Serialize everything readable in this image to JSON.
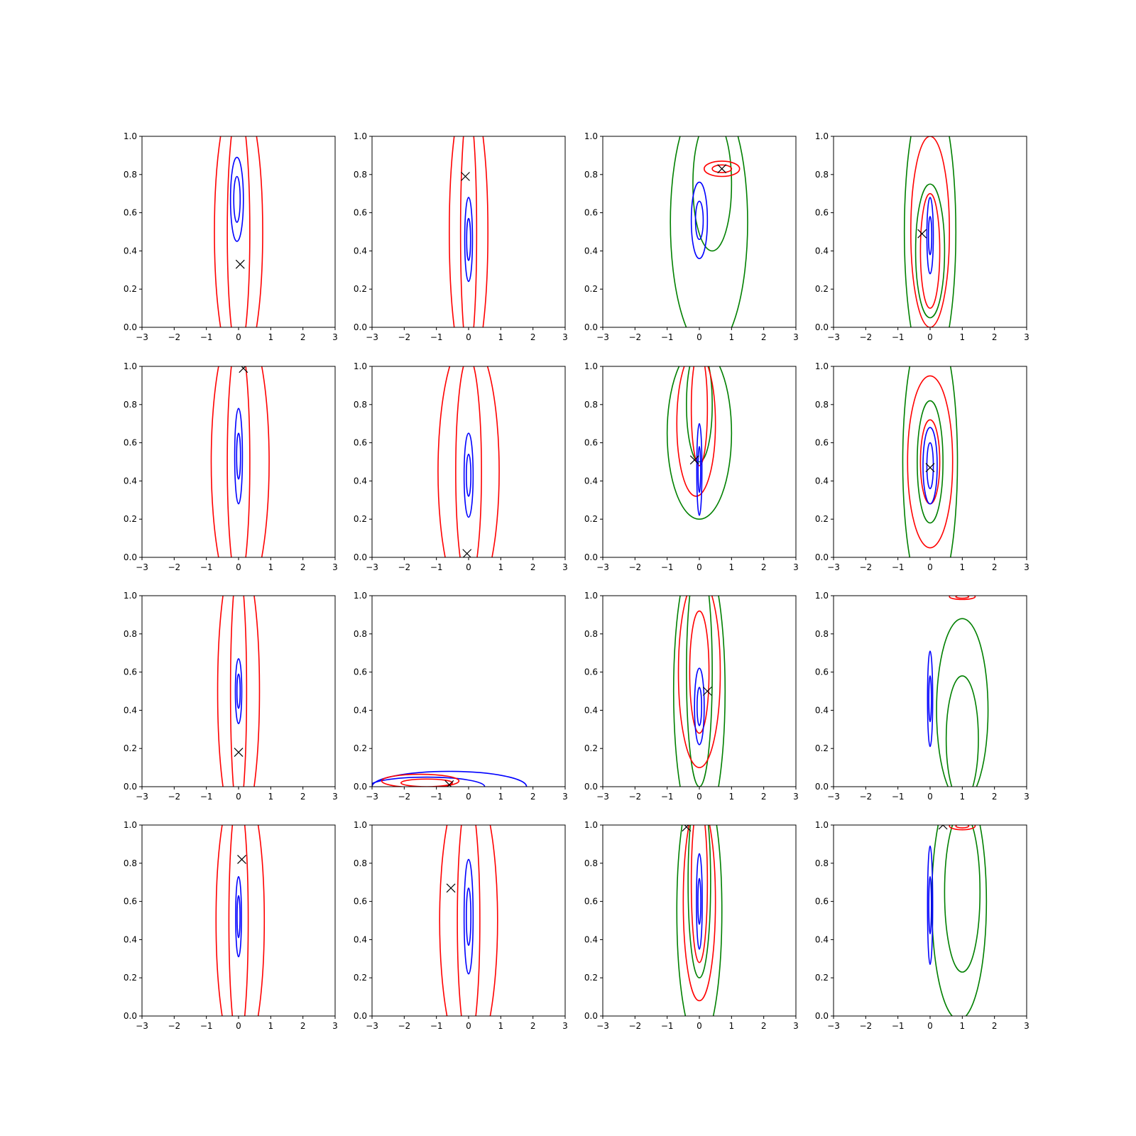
{
  "colors": {
    "red": "#ff0000",
    "blue": "#0000ff",
    "green": "#008000",
    "marker": "#000000",
    "axis": "#000000"
  },
  "chart_data": {
    "type": "contour",
    "grid": {
      "rows": 4,
      "cols": 4
    },
    "shared_axes": {
      "xlim": [
        -3,
        3
      ],
      "ylim": [
        0,
        1
      ],
      "xticks": [
        -3,
        -2,
        -1,
        0,
        1,
        2,
        3
      ],
      "xtick_labels": [
        "−3",
        "−2",
        "−1",
        "0",
        "1",
        "2",
        "3"
      ],
      "yticks": [
        0,
        0.2,
        0.4,
        0.6,
        0.8,
        1.0
      ],
      "ytick_labels": [
        "0.0",
        "0.2",
        "0.4",
        "0.6",
        "0.8",
        "1.0"
      ],
      "xlabel": "",
      "ylabel": "",
      "grid": false
    },
    "panels": [
      {
        "marker": [
          0.05,
          0.33
        ],
        "contours": [
          {
            "color": "red",
            "cx": 0.0,
            "cy": 0.5,
            "rx": 0.75,
            "ry": 0.75
          },
          {
            "color": "red",
            "cx": 0.0,
            "cy": 0.5,
            "rx": 0.35,
            "ry": 0.65
          },
          {
            "color": "blue",
            "cx": -0.05,
            "cy": 0.67,
            "rx": 0.2,
            "ry": 0.22
          },
          {
            "color": "blue",
            "cx": -0.05,
            "cy": 0.67,
            "rx": 0.1,
            "ry": 0.12
          }
        ]
      },
      {
        "marker": [
          -0.1,
          0.79
        ],
        "contours": [
          {
            "color": "red",
            "cx": 0.0,
            "cy": 0.5,
            "rx": 0.6,
            "ry": 0.75
          },
          {
            "color": "red",
            "cx": 0.0,
            "cy": 0.5,
            "rx": 0.25,
            "ry": 0.65
          },
          {
            "color": "blue",
            "cx": 0.0,
            "cy": 0.46,
            "rx": 0.12,
            "ry": 0.22
          },
          {
            "color": "blue",
            "cx": 0.0,
            "cy": 0.46,
            "rx": 0.06,
            "ry": 0.11
          }
        ]
      },
      {
        "marker": [
          0.7,
          0.83
        ],
        "contours": [
          {
            "color": "green",
            "cx": 0.3,
            "cy": 0.55,
            "rx": 1.2,
            "ry": 0.68
          },
          {
            "color": "green",
            "cx": 0.4,
            "cy": 0.75,
            "rx": 0.6,
            "ry": 0.35
          },
          {
            "color": "red",
            "cx": 0.7,
            "cy": 0.83,
            "rx": 0.55,
            "ry": 0.04
          },
          {
            "color": "red",
            "cx": 0.7,
            "cy": 0.83,
            "rx": 0.3,
            "ry": 0.02
          },
          {
            "color": "blue",
            "cx": 0.0,
            "cy": 0.56,
            "rx": 0.25,
            "ry": 0.2
          },
          {
            "color": "blue",
            "cx": 0.0,
            "cy": 0.56,
            "rx": 0.12,
            "ry": 0.1
          }
        ]
      },
      {
        "marker": [
          -0.25,
          0.49
        ],
        "contours": [
          {
            "color": "green",
            "cx": 0.0,
            "cy": 0.5,
            "rx": 0.8,
            "ry": 0.75
          },
          {
            "color": "green",
            "cx": 0.0,
            "cy": 0.4,
            "rx": 0.45,
            "ry": 0.35
          },
          {
            "color": "red",
            "cx": 0.0,
            "cy": 0.5,
            "rx": 0.6,
            "ry": 0.5
          },
          {
            "color": "red",
            "cx": 0.0,
            "cy": 0.4,
            "rx": 0.3,
            "ry": 0.3
          },
          {
            "color": "blue",
            "cx": 0.0,
            "cy": 0.48,
            "rx": 0.1,
            "ry": 0.2
          },
          {
            "color": "blue",
            "cx": 0.0,
            "cy": 0.48,
            "rx": 0.05,
            "ry": 0.1
          }
        ]
      },
      {
        "marker": [
          0.15,
          0.99
        ],
        "contours": [
          {
            "color": "red",
            "cx": 0.05,
            "cy": 0.5,
            "rx": 0.9,
            "ry": 0.75
          },
          {
            "color": "red",
            "cx": 0.0,
            "cy": 0.5,
            "rx": 0.35,
            "ry": 0.65
          },
          {
            "color": "blue",
            "cx": 0.0,
            "cy": 0.53,
            "rx": 0.12,
            "ry": 0.25
          },
          {
            "color": "blue",
            "cx": 0.0,
            "cy": 0.53,
            "rx": 0.06,
            "ry": 0.12
          }
        ]
      },
      {
        "marker": [
          -0.05,
          0.02
        ],
        "contours": [
          {
            "color": "red",
            "cx": 0.0,
            "cy": 0.45,
            "rx": 0.95,
            "ry": 0.7
          },
          {
            "color": "red",
            "cx": 0.0,
            "cy": 0.45,
            "rx": 0.4,
            "ry": 0.6
          },
          {
            "color": "blue",
            "cx": 0.0,
            "cy": 0.43,
            "rx": 0.14,
            "ry": 0.22
          },
          {
            "color": "blue",
            "cx": 0.0,
            "cy": 0.43,
            "rx": 0.07,
            "ry": 0.11
          }
        ]
      },
      {
        "marker": [
          -0.15,
          0.51
        ],
        "contours": [
          {
            "color": "green",
            "cx": 0.0,
            "cy": 0.65,
            "rx": 1.0,
            "ry": 0.45
          },
          {
            "color": "green",
            "cx": 0.0,
            "cy": 0.8,
            "rx": 0.4,
            "ry": 0.3
          },
          {
            "color": "red",
            "cx": -0.1,
            "cy": 0.7,
            "rx": 0.6,
            "ry": 0.38
          },
          {
            "color": "red",
            "cx": 0.0,
            "cy": 0.78,
            "rx": 0.25,
            "ry": 0.3
          },
          {
            "color": "blue",
            "cx": 0.0,
            "cy": 0.46,
            "rx": 0.08,
            "ry": 0.24
          },
          {
            "color": "blue",
            "cx": 0.0,
            "cy": 0.46,
            "rx": 0.04,
            "ry": 0.12
          }
        ]
      },
      {
        "marker": [
          0.0,
          0.47
        ],
        "contours": [
          {
            "color": "green",
            "cx": 0.0,
            "cy": 0.5,
            "rx": 0.85,
            "ry": 0.75
          },
          {
            "color": "green",
            "cx": 0.0,
            "cy": 0.5,
            "rx": 0.4,
            "ry": 0.32
          },
          {
            "color": "red",
            "cx": 0.0,
            "cy": 0.5,
            "rx": 0.7,
            "ry": 0.45
          },
          {
            "color": "red",
            "cx": 0.0,
            "cy": 0.5,
            "rx": 0.3,
            "ry": 0.22
          },
          {
            "color": "blue",
            "cx": 0.0,
            "cy": 0.48,
            "rx": 0.22,
            "ry": 0.2
          },
          {
            "color": "blue",
            "cx": 0.0,
            "cy": 0.48,
            "rx": 0.1,
            "ry": 0.12
          }
        ]
      },
      {
        "marker": [
          0.0,
          0.18
        ],
        "contours": [
          {
            "color": "red",
            "cx": 0.0,
            "cy": 0.5,
            "rx": 0.65,
            "ry": 0.75
          },
          {
            "color": "red",
            "cx": 0.0,
            "cy": 0.5,
            "rx": 0.25,
            "ry": 0.65
          },
          {
            "color": "blue",
            "cx": 0.0,
            "cy": 0.5,
            "rx": 0.1,
            "ry": 0.17
          },
          {
            "color": "blue",
            "cx": 0.0,
            "cy": 0.5,
            "rx": 0.05,
            "ry": 0.09
          }
        ]
      },
      {
        "marker": [
          -0.6,
          0.01
        ],
        "contours": [
          {
            "color": "blue",
            "cx": -0.6,
            "cy": 0.0,
            "rx": 2.4,
            "ry": 0.08
          },
          {
            "color": "blue",
            "cx": -1.3,
            "cy": 0.0,
            "rx": 1.8,
            "ry": 0.05
          },
          {
            "color": "red",
            "cx": -1.5,
            "cy": 0.03,
            "rx": 1.2,
            "ry": 0.035
          },
          {
            "color": "red",
            "cx": -1.3,
            "cy": 0.02,
            "rx": 0.8,
            "ry": 0.02
          }
        ]
      },
      {
        "marker": [
          0.25,
          0.5
        ],
        "contours": [
          {
            "color": "green",
            "cx": 0.0,
            "cy": 0.5,
            "rx": 0.8,
            "ry": 0.75
          },
          {
            "color": "green",
            "cx": 0.0,
            "cy": 0.6,
            "rx": 0.4,
            "ry": 0.6
          },
          {
            "color": "red",
            "cx": 0.0,
            "cy": 0.6,
            "rx": 0.65,
            "ry": 0.5
          },
          {
            "color": "red",
            "cx": 0.0,
            "cy": 0.6,
            "rx": 0.3,
            "ry": 0.32
          },
          {
            "color": "blue",
            "cx": 0.0,
            "cy": 0.42,
            "rx": 0.15,
            "ry": 0.2
          },
          {
            "color": "blue",
            "cx": 0.0,
            "cy": 0.42,
            "rx": 0.07,
            "ry": 0.1
          }
        ]
      },
      {
        "marker": null,
        "contours": [
          {
            "color": "green",
            "cx": 1.0,
            "cy": 0.4,
            "rx": 0.8,
            "ry": 0.48
          },
          {
            "color": "green",
            "cx": 1.0,
            "cy": 0.25,
            "rx": 0.5,
            "ry": 0.33
          },
          {
            "color": "red",
            "cx": 1.0,
            "cy": 0.995,
            "rx": 0.4,
            "ry": 0.015
          },
          {
            "color": "red",
            "cx": 1.0,
            "cy": 0.995,
            "rx": 0.2,
            "ry": 0.008
          },
          {
            "color": "blue",
            "cx": 0.0,
            "cy": 0.46,
            "rx": 0.08,
            "ry": 0.25
          },
          {
            "color": "blue",
            "cx": 0.0,
            "cy": 0.46,
            "rx": 0.04,
            "ry": 0.12
          }
        ]
      },
      {
        "marker": [
          0.1,
          0.82
        ],
        "contours": [
          {
            "color": "red",
            "cx": 0.05,
            "cy": 0.5,
            "rx": 0.75,
            "ry": 0.75
          },
          {
            "color": "red",
            "cx": 0.0,
            "cy": 0.5,
            "rx": 0.3,
            "ry": 0.65
          },
          {
            "color": "blue",
            "cx": 0.0,
            "cy": 0.52,
            "rx": 0.09,
            "ry": 0.21
          },
          {
            "color": "blue",
            "cx": 0.0,
            "cy": 0.52,
            "rx": 0.045,
            "ry": 0.11
          }
        ]
      },
      {
        "marker": [
          -0.55,
          0.67
        ],
        "contours": [
          {
            "color": "red",
            "cx": 0.0,
            "cy": 0.5,
            "rx": 0.9,
            "ry": 0.75
          },
          {
            "color": "red",
            "cx": 0.0,
            "cy": 0.5,
            "rx": 0.35,
            "ry": 0.65
          },
          {
            "color": "blue",
            "cx": 0.0,
            "cy": 0.52,
            "rx": 0.14,
            "ry": 0.3
          },
          {
            "color": "blue",
            "cx": 0.0,
            "cy": 0.52,
            "rx": 0.07,
            "ry": 0.15
          }
        ]
      },
      {
        "marker": [
          -0.4,
          0.99
        ],
        "contours": [
          {
            "color": "green",
            "cx": 0.0,
            "cy": 0.55,
            "rx": 0.7,
            "ry": 0.7
          },
          {
            "color": "green",
            "cx": 0.0,
            "cy": 0.7,
            "rx": 0.35,
            "ry": 0.5
          },
          {
            "color": "red",
            "cx": 0.0,
            "cy": 0.6,
            "rx": 0.5,
            "ry": 0.52
          },
          {
            "color": "red",
            "cx": 0.0,
            "cy": 0.7,
            "rx": 0.25,
            "ry": 0.42
          },
          {
            "color": "blue",
            "cx": 0.0,
            "cy": 0.6,
            "rx": 0.09,
            "ry": 0.25
          },
          {
            "color": "blue",
            "cx": 0.0,
            "cy": 0.6,
            "rx": 0.045,
            "ry": 0.12
          }
        ]
      },
      {
        "marker": [
          0.4,
          1.0
        ],
        "contours": [
          {
            "color": "green",
            "cx": 0.9,
            "cy": 0.6,
            "rx": 0.85,
            "ry": 0.62
          },
          {
            "color": "green",
            "cx": 1.0,
            "cy": 0.65,
            "rx": 0.55,
            "ry": 0.42
          },
          {
            "color": "red",
            "cx": 1.0,
            "cy": 0.995,
            "rx": 0.4,
            "ry": 0.02
          },
          {
            "color": "red",
            "cx": 1.0,
            "cy": 0.995,
            "rx": 0.2,
            "ry": 0.01
          },
          {
            "color": "blue",
            "cx": 0.0,
            "cy": 0.58,
            "rx": 0.08,
            "ry": 0.31
          },
          {
            "color": "blue",
            "cx": 0.0,
            "cy": 0.58,
            "rx": 0.04,
            "ry": 0.15
          }
        ]
      }
    ]
  }
}
